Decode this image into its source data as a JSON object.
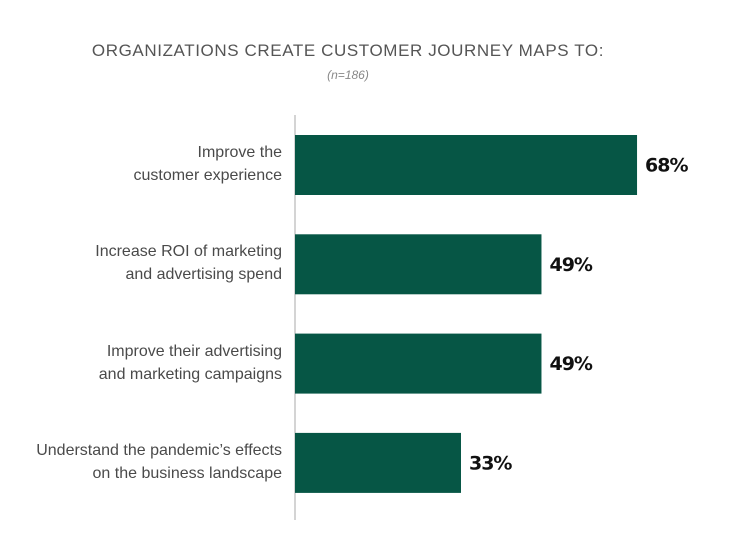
{
  "chart_data": {
    "type": "bar",
    "orientation": "horizontal",
    "title": "ORGANIZATIONS CREATE CUSTOMER JOURNEY MAPS TO:",
    "subtitle": "(n=186)",
    "categories": [
      "Improve the\ncustomer experience",
      "Increase ROI of marketing\nand advertising spend",
      "Improve their advertising\nand marketing campaigns",
      "Understand the pandemic’s effects\non the business landscape"
    ],
    "values": [
      68,
      49,
      49,
      33
    ],
    "value_labels": [
      "68%",
      "49%",
      "49%",
      "33%"
    ],
    "color": "#065645"
  }
}
